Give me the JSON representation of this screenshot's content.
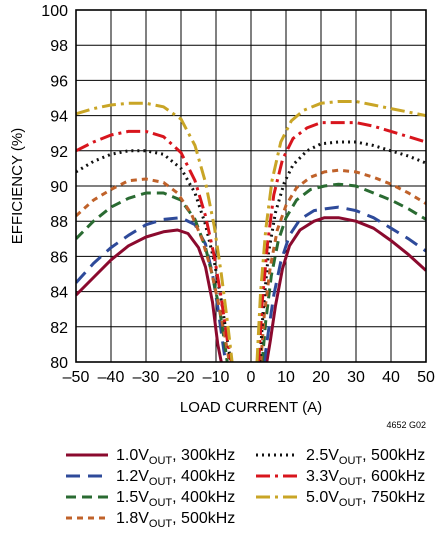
{
  "chart_data": {
    "type": "line",
    "title": "",
    "xlabel": "LOAD CURRENT (A)",
    "ylabel": "EFFICIENCY (%)",
    "xlim": [
      -50,
      50
    ],
    "ylim": [
      80,
      100
    ],
    "xticks": [
      -50,
      -40,
      -30,
      -20,
      -10,
      0,
      10,
      20,
      30,
      40,
      50
    ],
    "xtick_labels": [
      "–50",
      "–40",
      "–30",
      "–20",
      "–10",
      "0",
      "10",
      "20",
      "30",
      "40",
      "50"
    ],
    "yticks": [
      80,
      82,
      84,
      86,
      88,
      90,
      92,
      94,
      96,
      98,
      100
    ],
    "grid": true,
    "legend_position": "bottom",
    "annotation": "4652 G02",
    "series": [
      {
        "name_main": "1.0V",
        "name_sub": "OUT",
        "name_rest": ", 300kHz",
        "color": "#8b0a2e",
        "dash": "solid",
        "x": [
          -50,
          -45,
          -40,
          -35,
          -30,
          -25,
          -21,
          -18,
          -15,
          -13,
          -11,
          -9.5,
          -8.5,
          4.5,
          5.5,
          7,
          9,
          11,
          14,
          18,
          21,
          25,
          30,
          35,
          40,
          45,
          50
        ],
        "y": [
          83.8,
          84.8,
          85.8,
          86.6,
          87.1,
          87.4,
          87.5,
          87.3,
          86.5,
          85.4,
          83.4,
          81,
          80,
          80,
          81.2,
          83.2,
          85.3,
          86.6,
          87.5,
          88.0,
          88.2,
          88.2,
          88.0,
          87.6,
          86.9,
          86.1,
          85.2
        ]
      },
      {
        "name_main": "1.2V",
        "name_sub": "OUT",
        "name_rest": ", 400kHz",
        "color": "#2e4a9a",
        "dash": "14,8",
        "x": [
          -50,
          -45,
          -40,
          -35,
          -30,
          -25,
          -20,
          -16,
          -13,
          -11,
          -9.5,
          -8,
          -7.3,
          3.8,
          4.8,
          6.5,
          8.5,
          11,
          14,
          18,
          21,
          25,
          30,
          35,
          40,
          45,
          50
        ],
        "y": [
          84.5,
          85.6,
          86.5,
          87.2,
          87.8,
          88.1,
          88.2,
          87.8,
          86.7,
          85,
          83.1,
          81,
          80,
          80,
          81.5,
          83.8,
          85.7,
          87.2,
          88.1,
          88.6,
          88.7,
          88.8,
          88.6,
          88.2,
          87.6,
          87.0,
          86.3
        ]
      },
      {
        "name_main": "1.5V",
        "name_sub": "OUT",
        "name_rest": ", 400kHz",
        "color": "#2a6b32",
        "dash": "10,6",
        "x": [
          -50,
          -45,
          -40,
          -35,
          -30,
          -25,
          -20,
          -16,
          -13,
          -11,
          -9,
          -7.6,
          -6.8,
          3.2,
          4.2,
          5.8,
          7.8,
          10,
          13,
          17,
          21,
          25,
          30,
          35,
          40,
          45,
          50
        ],
        "y": [
          87.0,
          88.0,
          88.8,
          89.3,
          89.6,
          89.6,
          89.2,
          88.1,
          86.5,
          84.9,
          83,
          81.2,
          80,
          80,
          82.3,
          84.9,
          86.9,
          88.2,
          89.2,
          89.8,
          90.0,
          90.1,
          90.0,
          89.6,
          89.2,
          88.7,
          88.1
        ]
      },
      {
        "name_main": "1.8V",
        "name_sub": "OUT",
        "name_rest": ", 500kHz",
        "color": "#c0622a",
        "dash": "6,5",
        "x": [
          -50,
          -45,
          -40,
          -35,
          -30,
          -25,
          -21,
          -17,
          -14,
          -11.5,
          -9.5,
          -7.5,
          -6.2,
          2.8,
          3.8,
          5.5,
          7.5,
          10,
          13,
          17,
          21,
          25,
          30,
          35,
          40,
          45,
          50
        ],
        "y": [
          88.3,
          89.2,
          89.8,
          90.3,
          90.4,
          90.2,
          89.6,
          88.4,
          87.0,
          85.3,
          83.5,
          81.5,
          80,
          80,
          82.7,
          85.4,
          87.5,
          88.9,
          89.9,
          90.5,
          90.8,
          90.9,
          90.8,
          90.5,
          90.1,
          89.6,
          89.0
        ]
      },
      {
        "name_main": "2.5V",
        "name_sub": "OUT",
        "name_rest": ", 500kHz",
        "color": "#111111",
        "dash": "2,4",
        "x": [
          -50,
          -45,
          -40,
          -35,
          -30,
          -25,
          -20,
          -16,
          -13,
          -10.5,
          -8.5,
          -6.8,
          -5.8,
          2.5,
          3.5,
          5,
          7,
          9.5,
          12,
          16,
          20,
          25,
          30,
          35,
          40,
          45,
          50
        ],
        "y": [
          90.8,
          91.4,
          91.8,
          92.0,
          92.0,
          91.8,
          91.0,
          89.6,
          87.8,
          85.7,
          83.5,
          81.3,
          80,
          80,
          83.0,
          86.2,
          88.5,
          90.2,
          91.2,
          92.0,
          92.4,
          92.5,
          92.5,
          92.3,
          92.0,
          91.7,
          91.3
        ]
      },
      {
        "name_main": "3.3V",
        "name_sub": "OUT",
        "name_rest": ", 600kHz",
        "color": "#d8151d",
        "dash": "14,5,3,5",
        "x": [
          -50,
          -45,
          -40,
          -35,
          -30,
          -25,
          -20,
          -16,
          -13,
          -10.5,
          -8.5,
          -6.8,
          -5.6,
          2.2,
          3.2,
          4.7,
          6.5,
          9,
          12,
          16,
          20,
          25,
          30,
          35,
          40,
          45,
          50
        ],
        "y": [
          92.0,
          92.5,
          92.9,
          93.1,
          93.1,
          92.8,
          91.9,
          90.3,
          88.3,
          86.0,
          83.6,
          81.3,
          80,
          80,
          83.4,
          86.7,
          89.5,
          91.5,
          92.7,
          93.3,
          93.6,
          93.6,
          93.6,
          93.4,
          93.1,
          92.8,
          92.5
        ]
      },
      {
        "name_main": "5.0V",
        "name_sub": "OUT",
        "name_rest": ", 750kHz",
        "color": "#c9a526",
        "dash": "14,5,3,5",
        "x": [
          -50,
          -45,
          -40,
          -35,
          -30,
          -25,
          -20,
          -16,
          -13,
          -10.5,
          -8.5,
          -6.7,
          -5.4,
          1.7,
          2.7,
          4.2,
          6,
          8.5,
          11.5,
          15,
          20,
          25,
          30,
          35,
          40,
          45,
          50
        ],
        "y": [
          94.1,
          94.4,
          94.6,
          94.7,
          94.7,
          94.5,
          93.8,
          92.3,
          90.2,
          87.7,
          85.0,
          82.2,
          80,
          80,
          83.9,
          87.5,
          90.3,
          92.5,
          93.7,
          94.3,
          94.7,
          94.8,
          94.8,
          94.6,
          94.4,
          94.2,
          94.0
        ]
      }
    ]
  }
}
